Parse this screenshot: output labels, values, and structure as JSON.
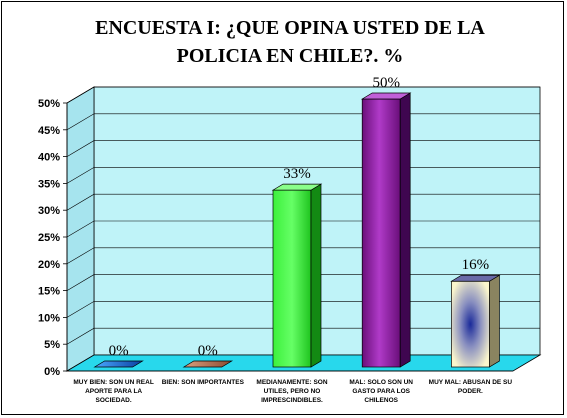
{
  "chart_data": {
    "type": "bar",
    "title": "ENCUESTA I: ¿QUE OPINA USTED DE LA POLICIA EN CHILE?. %",
    "categories": [
      "MUY BIEN: SON UN REAL APORTE PARA LA SOCIEDAD.",
      "BIEN: SON IMPORTANTES",
      "MEDIANAMENTE: SON UTILES, PERO NO IMPRESCINDIBLES.",
      "MAL: SOLO SON UN GASTO PARA LOS CHILENOS",
      "MUY MAL: ABUSAN DE SU PODER."
    ],
    "values": [
      0,
      0,
      33,
      50,
      16
    ],
    "data_labels": [
      "0%",
      "0%",
      "33%",
      "50%",
      "16%"
    ],
    "bar_colors": [
      "#1f6fd0",
      "#b87a5a",
      "#33dd33",
      "#8a1a9a",
      "#f5f0c8"
    ],
    "ylim": [
      0,
      50
    ],
    "yticks": [
      "0%",
      "5%",
      "10%",
      "15%",
      "20%",
      "25%",
      "30%",
      "35%",
      "40%",
      "45%",
      "50%"
    ],
    "grid": true,
    "legend": "none",
    "wall_color": "#bff3f8",
    "floor_color": "#28d8ec"
  }
}
